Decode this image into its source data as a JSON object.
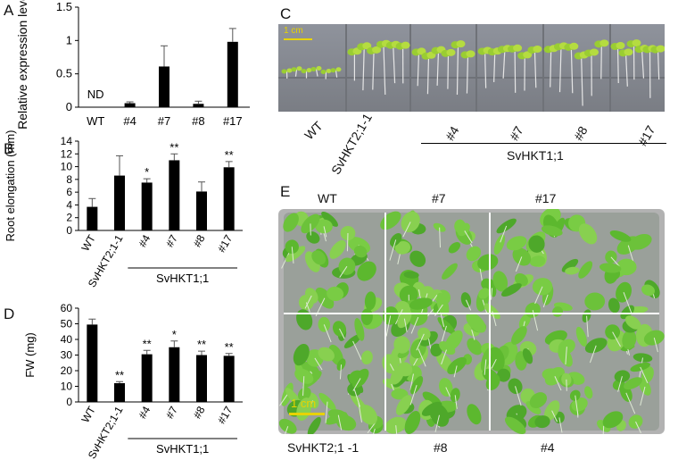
{
  "panels": {
    "A": {
      "letter": "A"
    },
    "B": {
      "letter": "B"
    },
    "C": {
      "letter": "C"
    },
    "D": {
      "letter": "D"
    },
    "E": {
      "letter": "E"
    }
  },
  "chart_data": [
    {
      "panel": "A",
      "type": "bar",
      "ylabel": "Relative expression levels",
      "ylim": [
        0,
        1.5
      ],
      "yticks": [
        "0",
        "0.5",
        "1",
        "1.5"
      ],
      "categories": [
        "WT",
        "#4",
        "#7",
        "#8",
        "#17"
      ],
      "values": [
        0,
        0.06,
        0.61,
        0.05,
        0.98
      ],
      "errors": [
        0,
        0.02,
        0.31,
        0.04,
        0.2
      ],
      "annotations": [
        "ND",
        "",
        "",
        "",
        ""
      ],
      "group_label": ""
    },
    {
      "panel": "B",
      "type": "bar",
      "ylabel": "Root elongation (mm)",
      "ylim": [
        0,
        14
      ],
      "yticks": [
        "0",
        "2",
        "4",
        "6",
        "8",
        "10",
        "12",
        "14"
      ],
      "categories": [
        "WT",
        "SvHKT2;1-1",
        "#4",
        "#7",
        "#8",
        "#17"
      ],
      "values": [
        3.7,
        8.6,
        7.5,
        11.0,
        6.1,
        9.9
      ],
      "errors": [
        1.3,
        3.1,
        0.6,
        1.0,
        1.5,
        0.9
      ],
      "annotations": [
        "",
        "",
        "*",
        "**",
        "",
        "**"
      ],
      "group_label": "SvHKT1;1"
    },
    {
      "panel": "D",
      "type": "bar",
      "ylabel": "FW (mg)",
      "ylim": [
        0,
        60
      ],
      "yticks": [
        "0",
        "10",
        "20",
        "30",
        "40",
        "50",
        "60"
      ],
      "categories": [
        "WT",
        "SvHKT2;1-1",
        "#4",
        "#7",
        "#8",
        "#17"
      ],
      "values": [
        49.5,
        12,
        30.5,
        35,
        30,
        29.5
      ],
      "errors": [
        3.5,
        1.0,
        2.5,
        4.0,
        2.5,
        1.5
      ],
      "annotations": [
        "",
        "**",
        "**",
        "*",
        "**",
        "**"
      ],
      "group_label": "SvHKT1;1"
    }
  ],
  "photo_c": {
    "scale_label": "1 cm",
    "labels": [
      "WT",
      "SvHKT2;1-1",
      "#4",
      "#7",
      "#8",
      "#17"
    ],
    "group_label": "SvHKT1;1"
  },
  "photo_e": {
    "scale_label": "1 cm",
    "top_labels": [
      "WT",
      "#7",
      "#17"
    ],
    "bottom_labels": [
      "SvHKT2;1 -1",
      "#8",
      "#4"
    ]
  },
  "colors": {
    "bar": "#000000",
    "scale_bar": "#e8d300",
    "plant": "#6cc23a",
    "plate": "#a9a9a9"
  }
}
